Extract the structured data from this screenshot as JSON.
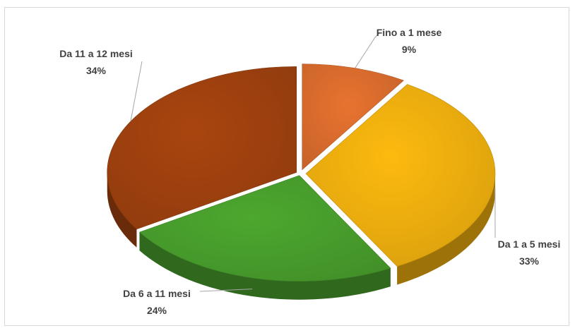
{
  "chart_data": {
    "type": "pie",
    "style": "3d-exploded",
    "title": "",
    "legend": "none",
    "slices": [
      {
        "label": "Fino a 1 mese",
        "value": 9,
        "value_label": "9%",
        "color": "#E87330"
      },
      {
        "label": "Da 1 a 5 mesi",
        "value": 33,
        "value_label": "33%",
        "color": "#FDBA0F"
      },
      {
        "label": "Da 6 a 11 mesi",
        "value": 24,
        "value_label": "24%",
        "color": "#4DA82F"
      },
      {
        "label": "Da 11 a 12 mesi",
        "value": 34,
        "value_label": "34%",
        "color": "#A9450F"
      }
    ]
  }
}
